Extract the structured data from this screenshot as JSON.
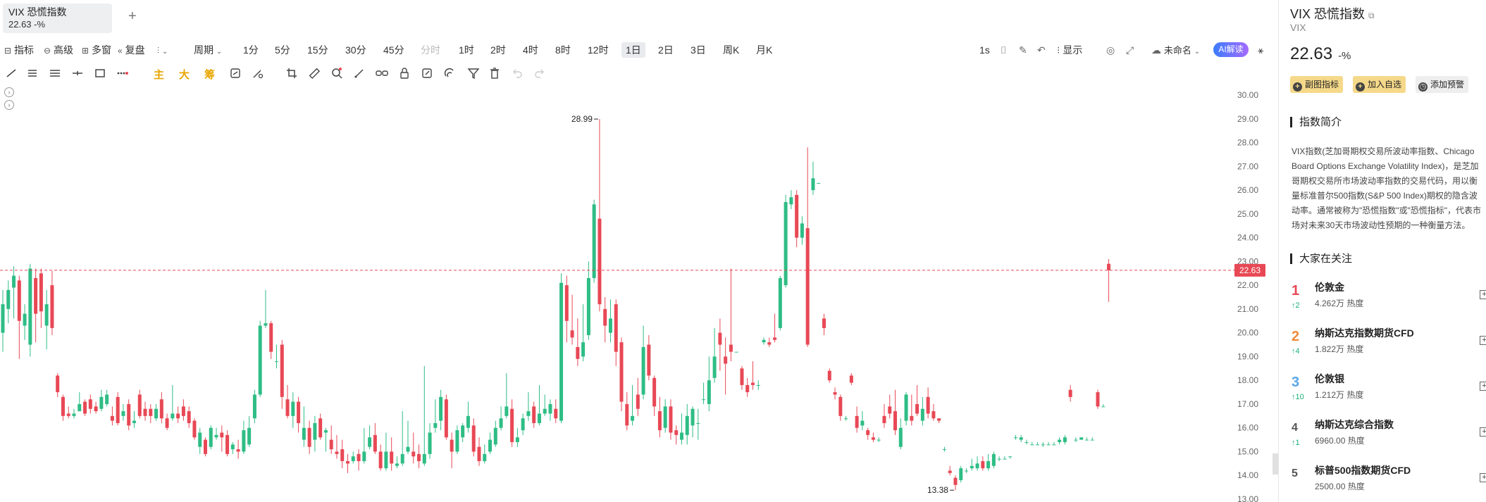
{
  "tab": {
    "title": "VIX 恐慌指数",
    "quote": "22.63 -%",
    "add": "+"
  },
  "toolbar": {
    "items": [
      {
        "label": "指标"
      },
      {
        "label": "高级"
      },
      {
        "label": "多窗"
      },
      {
        "label": "复盘"
      },
      {
        "label": "周期"
      }
    ],
    "periods": [
      "1分",
      "5分",
      "15分",
      "30分",
      "45分",
      "分时",
      "1时",
      "2时",
      "4时",
      "8时",
      "12时",
      "1日",
      "2日",
      "3日",
      "周K",
      "月K"
    ],
    "active_period": "1日",
    "right_items": [
      "1s",
      "显示",
      "未命名"
    ],
    "ai_label": "AI解读"
  },
  "drawbar": {
    "main": "主",
    "big": "大",
    "chip": "筹"
  },
  "chart_data": {
    "type": "candlestick",
    "current_price": 22.63,
    "ylim": [
      13,
      30
    ],
    "yticks": [
      "30.00",
      "29.00",
      "28.00",
      "27.00",
      "26.00",
      "25.00",
      "24.00",
      "23.00",
      "22.00",
      "21.00",
      "20.00",
      "19.00",
      "18.00",
      "17.00",
      "16.00",
      "15.00",
      "14.00",
      "13.00"
    ],
    "annotations": [
      {
        "label": "28.99",
        "value": 28.99
      },
      {
        "label": "13.38",
        "value": 13.38
      }
    ],
    "price_label": "22.63",
    "up_color": "#2ebd85",
    "down_color": "#e84855",
    "candles": [
      [
        20.0,
        21.2,
        21.8,
        19.2
      ],
      [
        21.0,
        21.8,
        22.2,
        20.4
      ],
      [
        21.9,
        22.4,
        22.8,
        20.6
      ],
      [
        22.2,
        20.5,
        22.4,
        18.9
      ],
      [
        20.3,
        20.8,
        21.2,
        19.7
      ],
      [
        19.5,
        22.7,
        22.9,
        19.0
      ],
      [
        22.3,
        20.8,
        22.7,
        19.6
      ],
      [
        22.5,
        20.9,
        22.7,
        20.2
      ],
      [
        20.3,
        21.2,
        21.8,
        19.3
      ],
      [
        22.0,
        20.2,
        22.6,
        19.9
      ],
      [
        18.2,
        17.5,
        18.3,
        17.3
      ],
      [
        17.3,
        16.5,
        17.4,
        16.3
      ],
      [
        16.6,
        16.5,
        16.9,
        16.4
      ],
      [
        16.5,
        16.6,
        16.8,
        16.4
      ],
      [
        16.7,
        17.0,
        17.5,
        16.7
      ],
      [
        17.1,
        16.6,
        17.2,
        16.5
      ],
      [
        17.2,
        16.8,
        17.4,
        16.6
      ],
      [
        16.9,
        16.7,
        17.1,
        16.6
      ],
      [
        16.8,
        17.3,
        17.6,
        16.7
      ],
      [
        17.0,
        17.4,
        17.6,
        16.9
      ],
      [
        16.5,
        16.3,
        16.9,
        16.1
      ],
      [
        17.3,
        16.2,
        17.5,
        16.1
      ],
      [
        16.5,
        16.7,
        17.0,
        16.3
      ],
      [
        17.0,
        16.1,
        17.2,
        15.9
      ],
      [
        16.2,
        16.3,
        16.7,
        16.0
      ],
      [
        17.4,
        16.5,
        17.6,
        16.4
      ],
      [
        16.8,
        16.5,
        17.1,
        16.3
      ],
      [
        16.8,
        16.5,
        17.0,
        16.2
      ],
      [
        16.4,
        16.8,
        17.0,
        16.3
      ],
      [
        17.2,
        16.4,
        17.5,
        16.2
      ],
      [
        16.4,
        16.0,
        16.6,
        15.9
      ],
      [
        16.4,
        16.6,
        17.8,
        16.3
      ],
      [
        16.6,
        16.4,
        16.9,
        16.2
      ],
      [
        16.9,
        16.5,
        17.2,
        16.3
      ],
      [
        16.7,
        16.2,
        16.9,
        16.0
      ],
      [
        16.3,
        15.6,
        16.4,
        15.5
      ],
      [
        15.2,
        15.8,
        16.0,
        14.9
      ],
      [
        15.5,
        14.9,
        15.6,
        14.8
      ],
      [
        15.2,
        16.0,
        16.1,
        15.1
      ],
      [
        15.6,
        15.7,
        16.0,
        15.5
      ],
      [
        15.8,
        15.6,
        16.1,
        15.0
      ],
      [
        15.7,
        14.9,
        15.9,
        14.8
      ],
      [
        15.1,
        15.3,
        15.4,
        14.9
      ],
      [
        15.1,
        15.0,
        15.5,
        14.7
      ],
      [
        15.0,
        15.9,
        16.3,
        14.9
      ],
      [
        15.3,
        16.0,
        16.5,
        15.2
      ],
      [
        16.4,
        17.4,
        17.6,
        16.2
      ],
      [
        17.4,
        20.3,
        20.5,
        17.3
      ],
      [
        20.3,
        20.4,
        21.8,
        20.2
      ],
      [
        20.4,
        19.2,
        20.5,
        18.9
      ],
      [
        18.8,
        18.8,
        19.5,
        18.5
      ],
      [
        19.5,
        17.3,
        19.7,
        16.8
      ],
      [
        17.2,
        16.5,
        17.8,
        16.4
      ],
      [
        16.5,
        17.1,
        17.5,
        16.0
      ],
      [
        17.1,
        16.2,
        17.3,
        15.8
      ],
      [
        15.5,
        16.0,
        16.9,
        15.2
      ],
      [
        16.0,
        15.2,
        16.3,
        14.9
      ],
      [
        15.5,
        16.2,
        16.5,
        15.0
      ],
      [
        16.4,
        15.6,
        16.6,
        15.5
      ],
      [
        15.8,
        15.9,
        16.0,
        15.0
      ],
      [
        15.5,
        15.1,
        16.1,
        14.9
      ],
      [
        15.0,
        14.9,
        15.7,
        14.7
      ],
      [
        15.1,
        14.6,
        15.5,
        14.3
      ],
      [
        14.6,
        14.5,
        14.9,
        14.1
      ],
      [
        14.6,
        14.8,
        15.0,
        14.5
      ],
      [
        14.9,
        14.6,
        15.1,
        14.2
      ],
      [
        14.6,
        15.0,
        16.0,
        14.5
      ],
      [
        15.2,
        15.6,
        16.1,
        15.1
      ],
      [
        15.7,
        15.0,
        16.2,
        14.9
      ],
      [
        15.0,
        14.3,
        15.3,
        14.2
      ],
      [
        14.3,
        15.0,
        15.8,
        14.2
      ],
      [
        15.0,
        14.5,
        15.6,
        14.2
      ],
      [
        14.4,
        14.5,
        14.8,
        14.3
      ],
      [
        14.5,
        14.9,
        16.7,
        14.4
      ],
      [
        15.0,
        15.2,
        16.3,
        14.9
      ],
      [
        15.0,
        14.8,
        15.8,
        14.5
      ],
      [
        14.9,
        14.6,
        15.3,
        14.3
      ],
      [
        14.5,
        14.9,
        18.6,
        14.4
      ],
      [
        14.9,
        15.8,
        16.2,
        14.7
      ],
      [
        16.0,
        16.2,
        17.2,
        15.8
      ],
      [
        16.3,
        17.3,
        17.6,
        15.9
      ],
      [
        17.2,
        15.6,
        17.4,
        15.5
      ],
      [
        15.5,
        15.0,
        15.8,
        14.3
      ],
      [
        15.0,
        15.9,
        16.1,
        14.9
      ],
      [
        15.6,
        16.1,
        16.2,
        15.4
      ],
      [
        16.0,
        16.5,
        17.1,
        15.8
      ],
      [
        16.1,
        15.0,
        16.4,
        14.8
      ],
      [
        15.2,
        14.6,
        15.6,
        14.4
      ],
      [
        14.6,
        14.9,
        15.3,
        14.5
      ],
      [
        15.0,
        15.5,
        15.8,
        14.9
      ],
      [
        15.3,
        16.0,
        16.3,
        15.2
      ],
      [
        16.0,
        16.4,
        16.9,
        15.9
      ],
      [
        16.5,
        16.9,
        18.3,
        16.4
      ],
      [
        16.8,
        15.4,
        17.2,
        15.2
      ],
      [
        15.4,
        15.6,
        16.0,
        15.2
      ],
      [
        15.9,
        16.4,
        16.6,
        15.7
      ],
      [
        16.5,
        16.7,
        17.5,
        16.3
      ],
      [
        16.9,
        16.2,
        17.1,
        16.0
      ],
      [
        16.2,
        16.6,
        17.8,
        16.1
      ],
      [
        16.6,
        16.8,
        17.4,
        16.5
      ],
      [
        16.6,
        17.0,
        17.2,
        16.3
      ],
      [
        16.8,
        16.4,
        17.2,
        16.2
      ],
      [
        16.3,
        22.1,
        22.5,
        16.2
      ],
      [
        22.0,
        20.5,
        22.4,
        19.6
      ],
      [
        20.1,
        19.8,
        21.6,
        19.5
      ],
      [
        19.4,
        18.9,
        20.6,
        18.6
      ],
      [
        19.0,
        19.6,
        21.2,
        18.8
      ],
      [
        19.9,
        22.3,
        23.0,
        19.7
      ],
      [
        22.3,
        25.4,
        25.6,
        22.1
      ],
      [
        24.8,
        21.2,
        28.99,
        20.9
      ],
      [
        21.0,
        20.3,
        21.5,
        19.6
      ],
      [
        20.0,
        20.6,
        21.4,
        19.6
      ],
      [
        21.2,
        19.2,
        21.4,
        18.6
      ],
      [
        19.6,
        17.1,
        19.8,
        16.7
      ],
      [
        17.0,
        16.1,
        17.5,
        15.9
      ],
      [
        16.3,
        16.5,
        17.8,
        16.1
      ],
      [
        17.4,
        16.8,
        18.1,
        16.5
      ],
      [
        17.4,
        19.4,
        20.3,
        17.2
      ],
      [
        19.5,
        18.2,
        19.9,
        18.0
      ],
      [
        18.1,
        16.9,
        18.2,
        16.5
      ],
      [
        16.7,
        15.9,
        17.3,
        15.6
      ],
      [
        16.0,
        16.9,
        17.2,
        15.8
      ],
      [
        16.9,
        15.8,
        17.2,
        15.5
      ],
      [
        15.9,
        15.7,
        16.1,
        15.3
      ],
      [
        15.5,
        15.8,
        16.6,
        15.3
      ],
      [
        15.7,
        16.5,
        17.0,
        15.3
      ],
      [
        16.1,
        16.8,
        16.9,
        15.6
      ],
      [
        16.2,
        16.2,
        16.8,
        15.5
      ],
      [
        17.2,
        17.2,
        17.9,
        17.0
      ],
      [
        17.0,
        18.0,
        19.0,
        16.7
      ],
      [
        18.1,
        19.0,
        20.2,
        17.9
      ],
      [
        20.0,
        19.5,
        20.6,
        18.4
      ],
      [
        19.0,
        18.7,
        19.8,
        17.4
      ],
      [
        19.5,
        19.2,
        22.7,
        18.8
      ],
      [
        19.2,
        19.2,
        19.2,
        19.2
      ],
      [
        18.5,
        17.8,
        18.6,
        17.6
      ],
      [
        17.8,
        17.5,
        18.1,
        17.3
      ],
      [
        17.9,
        17.8,
        18.8,
        17.6
      ],
      [
        17.8,
        17.8,
        18.0,
        17.6
      ],
      [
        19.6,
        19.7,
        19.8,
        19.5
      ],
      [
        19.6,
        19.5,
        19.8,
        19.4
      ],
      [
        19.8,
        19.7,
        20.8,
        19.6
      ],
      [
        20.2,
        22.3,
        22.4,
        20.1
      ],
      [
        22.0,
        25.5,
        25.8,
        21.9
      ],
      [
        25.4,
        25.7,
        26.0,
        25.2
      ],
      [
        25.8,
        24.0,
        26.0,
        23.6
      ],
      [
        24.0,
        24.6,
        24.9,
        23.7
      ],
      [
        24.4,
        19.5,
        27.8,
        19.4
      ],
      [
        26.0,
        26.5,
        27.2,
        25.8
      ],
      [
        26.3,
        26.3,
        26.3,
        26.3
      ],
      [
        20.6,
        20.2,
        20.8,
        19.9
      ],
      [
        18.4,
        18.0,
        18.5,
        17.9
      ],
      [
        17.5,
        17.4,
        17.7,
        17.2
      ],
      [
        17.3,
        16.5,
        17.4,
        16.3
      ],
      [
        16.4,
        16.4,
        16.5,
        16.3
      ],
      [
        18.2,
        17.9,
        18.3,
        17.8
      ],
      [
        16.5,
        16.0,
        16.9,
        15.8
      ],
      [
        16.1,
        16.3,
        16.7,
        15.9
      ],
      [
        15.9,
        15.7,
        16.0,
        15.5
      ],
      [
        15.6,
        15.5,
        15.8,
        15.4
      ],
      [
        15.5,
        15.5,
        15.6,
        15.4
      ],
      [
        16.5,
        16.2,
        17.0,
        16.0
      ],
      [
        16.9,
        16.6,
        17.4,
        16.4
      ],
      [
        16.7,
        15.9,
        17.6,
        15.7
      ],
      [
        15.2,
        16.0,
        16.4,
        15.1
      ],
      [
        16.3,
        17.4,
        17.5,
        16.1
      ],
      [
        16.5,
        16.3,
        17.4,
        16.1
      ],
      [
        17.0,
        16.6,
        17.8,
        16.5
      ],
      [
        16.3,
        16.8,
        17.3,
        16.1
      ],
      [
        17.3,
        16.6,
        17.7,
        16.4
      ],
      [
        16.7,
        16.4,
        17.0,
        16.3
      ],
      [
        16.4,
        16.3,
        16.4,
        16.2
      ],
      [
        15.1,
        15.1,
        15.2,
        15.0
      ],
      [
        14.2,
        14.1,
        14.4,
        14.0
      ],
      [
        13.9,
        13.6,
        14.0,
        13.38
      ],
      [
        13.8,
        14.3,
        14.4,
        13.7
      ],
      [
        14.2,
        14.2,
        14.3,
        14.1
      ],
      [
        14.3,
        14.4,
        14.7,
        14.2
      ],
      [
        14.3,
        14.5,
        14.8,
        14.2
      ],
      [
        14.6,
        14.3,
        14.8,
        14.2
      ],
      [
        14.3,
        14.6,
        14.9,
        14.2
      ],
      [
        14.4,
        14.9,
        15.0,
        14.3
      ],
      [
        14.7,
        14.7,
        14.8,
        14.6
      ],
      [
        14.7,
        14.7,
        14.8,
        14.7
      ],
      [
        14.8,
        14.8,
        14.8,
        14.7
      ],
      [
        15.6,
        15.6,
        15.7,
        15.5
      ],
      [
        15.5,
        15.6,
        15.7,
        15.4
      ],
      [
        15.4,
        15.4,
        15.5,
        15.3
      ],
      [
        15.3,
        15.3,
        15.4,
        15.3
      ],
      [
        15.3,
        15.3,
        15.4,
        15.3
      ],
      [
        15.3,
        15.3,
        15.4,
        15.2
      ],
      [
        15.3,
        15.3,
        15.4,
        15.3
      ],
      [
        15.3,
        15.3,
        15.4,
        15.3
      ],
      [
        15.4,
        15.5,
        15.6,
        15.3
      ],
      [
        15.4,
        15.6,
        15.7,
        15.3
      ],
      [
        17.6,
        17.3,
        17.8,
        17.1
      ],
      [
        15.5,
        15.5,
        15.6,
        15.4
      ],
      [
        15.5,
        15.6,
        15.6,
        15.5
      ],
      [
        15.5,
        15.5,
        15.6,
        15.5
      ],
      [
        15.5,
        15.5,
        15.6,
        15.5
      ],
      [
        17.5,
        16.9,
        17.6,
        16.8
      ],
      [
        16.9,
        16.9,
        17.0,
        16.9
      ],
      [
        22.9,
        22.63,
        23.1,
        21.3
      ]
    ]
  },
  "right": {
    "title": "VIX 恐慌指数",
    "ticker": "VIX",
    "price": "22.63",
    "pct": "-%",
    "buttons": [
      "副图指标",
      "加入自选",
      "添加预警"
    ],
    "intro_title": "指数简介",
    "intro": "VIX指数(芝加哥期权交易所波动率指数、Chicago Board Options Exchange Volatility Index)，是芝加哥期权交易所市场波动率指数的交易代码，用以衡量标准普尔500指数(S&P 500 Index)期权的隐含波动率。通常被称为\"恐慌指数\"或\"恐慌指标\"，代表市场对未来30天市场波动性预期的一种衡量方法。",
    "hot_title": "大家在关注",
    "hot": [
      {
        "rank": "1",
        "chg": "↑2",
        "name": "伦敦金",
        "heat": "4.262万 热度",
        "color": "#e84855"
      },
      {
        "rank": "2",
        "chg": "↑4",
        "name": "纳斯达克指数期货CFD",
        "heat": "1.822万 热度",
        "color": "#f08a3c"
      },
      {
        "rank": "3",
        "chg": "↑10",
        "name": "伦敦银",
        "heat": "1.212万 热度",
        "color": "#5aa5e8"
      },
      {
        "rank": "4",
        "chg": "↑1",
        "name": "纳斯达克综合指数",
        "heat": "6960.00 热度",
        "color": "#555555"
      },
      {
        "rank": "5",
        "chg": "",
        "name": "标普500指数期货CFD",
        "heat": "2500.00 热度",
        "color": "#555555"
      }
    ]
  }
}
